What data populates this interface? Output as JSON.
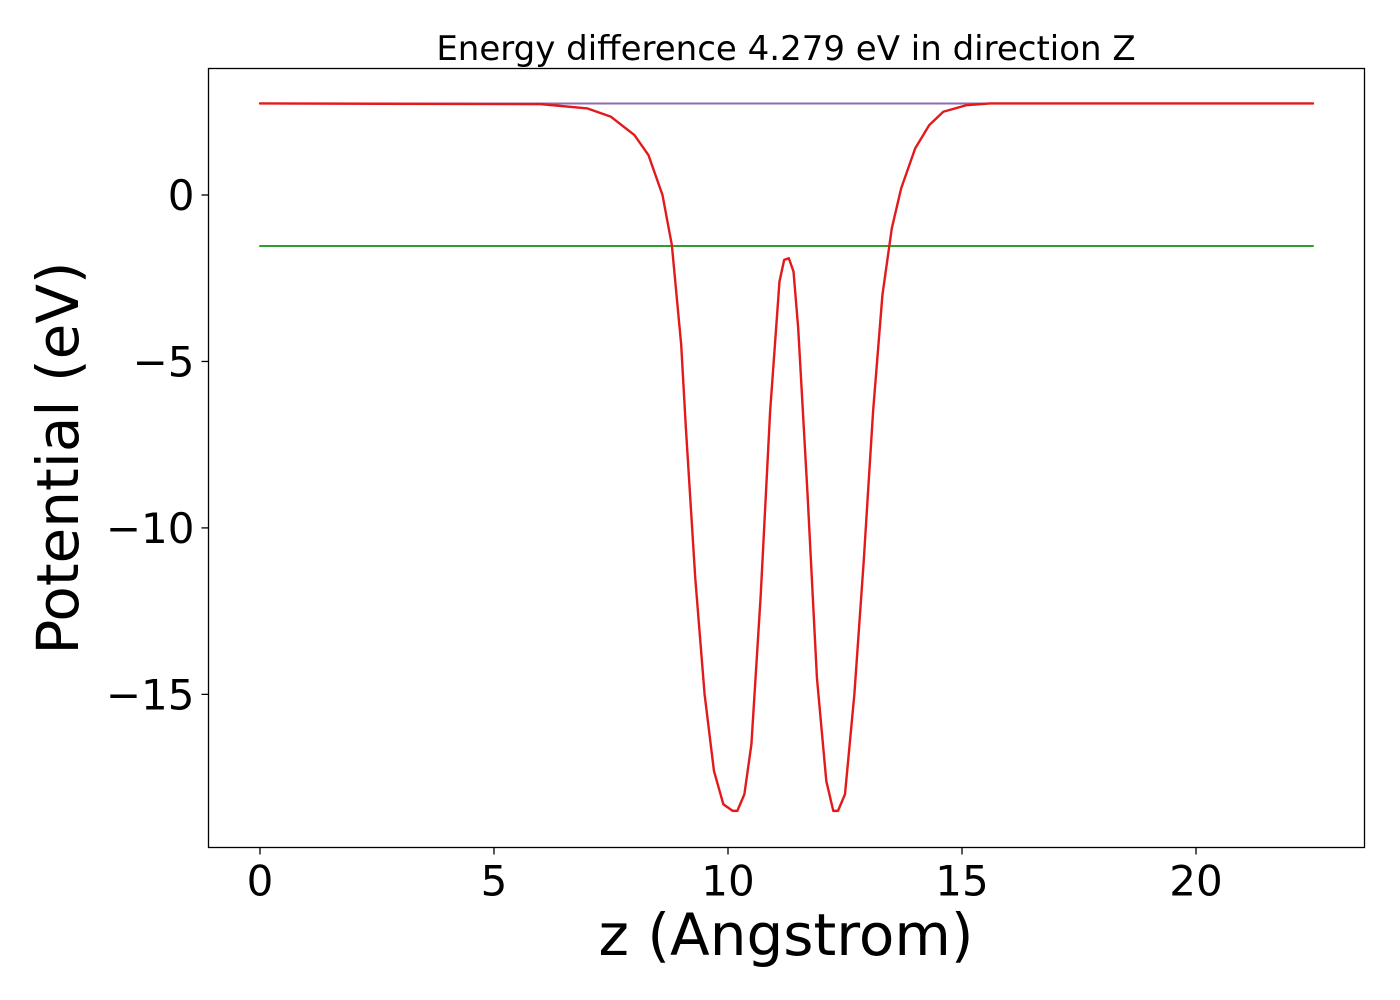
{
  "chart_data": {
    "type": "line",
    "title": "Energy difference 4.279 eV in direction Z",
    "xlabel": "z (Angstrom)",
    "ylabel": "Potential (eV)",
    "xlim": [
      -1.1,
      23.6
    ],
    "ylim": [
      -19.6,
      3.8
    ],
    "xticks": [
      0,
      5,
      10,
      15,
      20
    ],
    "xtick_labels": [
      "0",
      "5",
      "10",
      "15",
      "20"
    ],
    "yticks": [
      0,
      -5,
      -10,
      -15
    ],
    "ytick_labels": [
      "0",
      "−5",
      "−10",
      "−15"
    ],
    "grid": false,
    "series": [
      {
        "color": "#1f77b4",
        "x": [
          0,
          22.5
        ],
        "y": [
          2.75,
          2.75
        ]
      },
      {
        "color": "#2ca02c",
        "x": [
          0,
          22.5
        ],
        "y": [
          -1.53,
          -1.53
        ]
      },
      {
        "color": "#8c6bb1",
        "x": [
          0,
          7.0,
          15.6,
          22.5
        ],
        "y": [
          2.75,
          2.75,
          2.75,
          2.75
        ]
      },
      {
        "color": "#e31a1c",
        "x": [
          0,
          6.0,
          7.0,
          7.5,
          8.0,
          8.3,
          8.6,
          8.8,
          9.0,
          9.1,
          9.3,
          9.5,
          9.7,
          9.9,
          10.1,
          10.2,
          10.35,
          10.5,
          10.7,
          10.9,
          11.1,
          11.2,
          11.3,
          11.4,
          11.5,
          11.7,
          11.9,
          12.1,
          12.25,
          12.35,
          12.5,
          12.7,
          12.9,
          13.1,
          13.3,
          13.5,
          13.7,
          13.8,
          14.0,
          14.3,
          14.6,
          15.1,
          15.6,
          16.5,
          22.5
        ],
        "y": [
          2.75,
          2.73,
          2.6,
          2.35,
          1.8,
          1.2,
          0.0,
          -1.5,
          -4.5,
          -7.0,
          -11.5,
          -15.0,
          -17.3,
          -18.3,
          -18.5,
          -18.5,
          -18.0,
          -16.5,
          -12.0,
          -6.5,
          -2.6,
          -1.95,
          -1.9,
          -2.3,
          -4.0,
          -9.0,
          -14.5,
          -17.6,
          -18.5,
          -18.5,
          -18.0,
          -15.0,
          -11.0,
          -6.5,
          -3.0,
          -1.0,
          0.2,
          0.6,
          1.4,
          2.1,
          2.5,
          2.7,
          2.75,
          2.75,
          2.75
        ]
      }
    ]
  }
}
